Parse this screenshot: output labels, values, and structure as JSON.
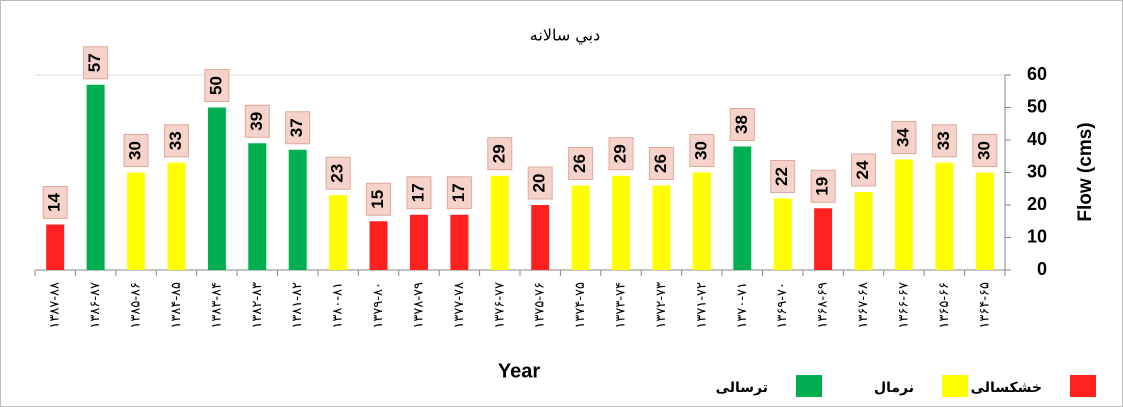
{
  "chart_data": {
    "type": "bar",
    "title": "دبي سالانه",
    "x_label": "Year",
    "y_label": "Flow (cms)",
    "categories": [
      "۱۳۸۷-۸۸",
      "۱۳۸۶-۸۷",
      "۱۳۸۵-۸۶",
      "۱۳۸۴-۸۵",
      "۱۳۸۳-۸۴",
      "۱۳۸۲-۸۳",
      "۱۳۸۱-۸۲",
      "۱۳۸۰-۸۱",
      "۱۳۷۹-۸۰",
      "۱۳۷۸-۷۹",
      "۱۳۷۷-۷۸",
      "۱۳۷۶-۷۷",
      "۱۳۷۵-۷۶",
      "۱۳۷۴-۷۵",
      "۱۳۷۳-۷۴",
      "۱۳۷۲-۷۳",
      "۱۳۷۱-۷۲",
      "۱۳۷۰-۷۱",
      "۱۳۶۹-۷۰",
      "۱۳۶۸-۶۹",
      "۱۳۶۷-۶۸",
      "۱۳۶۶-۶۷",
      "۱۳۶۵-۶۶",
      "۱۳۶۴-۶۵"
    ],
    "series": [
      {
        "name": "خشکسالی",
        "color": "#ff2020",
        "values": [
          14,
          null,
          null,
          null,
          null,
          null,
          null,
          null,
          15,
          17,
          17,
          null,
          20,
          null,
          null,
          null,
          null,
          null,
          null,
          19,
          null,
          null,
          null,
          null
        ]
      },
      {
        "name": "نرمال",
        "color": "#ffff00",
        "values": [
          null,
          null,
          30,
          33,
          null,
          null,
          null,
          23,
          null,
          null,
          null,
          29,
          null,
          26,
          29,
          26,
          30,
          null,
          22,
          null,
          24,
          34,
          33,
          30
        ]
      },
      {
        "name": "ترسالی",
        "color": "#00b050",
        "values": [
          null,
          57,
          null,
          null,
          50,
          39,
          37,
          null,
          null,
          null,
          null,
          null,
          null,
          null,
          null,
          null,
          null,
          38,
          null,
          null,
          null,
          null,
          null,
          null
        ]
      }
    ],
    "ylim": [
      0,
      60
    ],
    "yticks": [
      0,
      10,
      20,
      30,
      40,
      50,
      60
    ],
    "y_axis_side": "right",
    "legend": "bottom-right"
  }
}
